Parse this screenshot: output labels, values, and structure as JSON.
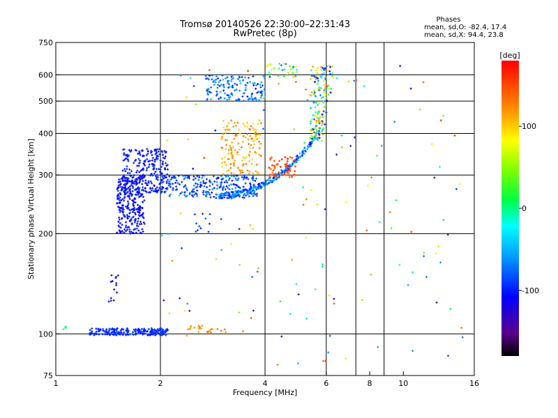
{
  "chart_data": {
    "type": "scatter",
    "title": "Tromsø 20140526 22:30:00–22:31:43",
    "subtitle": "RwPretec (8p)",
    "xlabel": "Frequency [MHz]",
    "ylabel": "Stationary phase Virtual Height [km]",
    "xscale": "log",
    "yscale": "log",
    "xlim": [
      1,
      16
    ],
    "ylim": [
      75,
      750
    ],
    "x_ticks": [
      1,
      2,
      4,
      6,
      8,
      10,
      16
    ],
    "x_tick_labels": [
      "1",
      "2",
      "4",
      "6",
      "8",
      "10",
      "16"
    ],
    "y_ticks": [
      75,
      100,
      200,
      300,
      400,
      500,
      600,
      750
    ],
    "y_tick_labels": [
      "75",
      "100",
      "200",
      "300",
      "400",
      "500",
      "600",
      "750"
    ],
    "grid": true,
    "grid_x": [
      2,
      4,
      6,
      7.3,
      8.8
    ],
    "grid_y": [
      100,
      200,
      300,
      400,
      500,
      600
    ],
    "stats": {
      "heading": "Phases",
      "line_o": "mean, sd,O:  -82.4, 17.4",
      "line_x": "mean, sd,X:  94.4, 23.8"
    },
    "colorbar": {
      "label": "[deg]",
      "range": [
        -180,
        180
      ],
      "ticks": [
        100,
        0,
        -100
      ],
      "tick_labels": [
        "100",
        "0",
        "-100"
      ],
      "colormap": "rainbow"
    },
    "clusters": [
      {
        "x_range": [
          1.25,
          2.1
        ],
        "y_range": [
          99,
          104
        ],
        "n": 220,
        "phase": [
          -105,
          -85
        ],
        "shape": "line"
      },
      {
        "x_range": [
          1.05,
          1.07
        ],
        "y_range": [
          103,
          106
        ],
        "n": 4,
        "phase": [
          -10,
          10
        ]
      },
      {
        "x_range": [
          1.42,
          1.52
        ],
        "y_range": [
          125,
          155
        ],
        "n": 14,
        "phase": [
          -120,
          -100
        ]
      },
      {
        "x_range": [
          1.5,
          1.8
        ],
        "y_range": [
          200,
          300
        ],
        "n": 280,
        "phase": [
          -120,
          -90
        ]
      },
      {
        "x_range": [
          1.55,
          2.1
        ],
        "y_range": [
          265,
          360
        ],
        "n": 250,
        "phase": [
          -115,
          -90
        ]
      },
      {
        "x_range": [
          2.0,
          3.8
        ],
        "y_range": [
          255,
          300
        ],
        "n": 260,
        "phase": [
          -110,
          -60
        ]
      },
      {
        "x_range": [
          2.9,
          5.6
        ],
        "y_range": [
          260,
          390
        ],
        "n": 240,
        "phase": [
          -110,
          -40
        ],
        "shape": "trace"
      },
      {
        "x_range": [
          4.1,
          4.9
        ],
        "y_range": [
          295,
          340
        ],
        "n": 60,
        "phase": [
          130,
          170
        ]
      },
      {
        "x_range": [
          3.0,
          3.9
        ],
        "y_range": [
          300,
          440
        ],
        "n": 150,
        "phase": [
          90,
          140
        ]
      },
      {
        "x_range": [
          2.7,
          4.0
        ],
        "y_range": [
          500,
          600
        ],
        "n": 140,
        "phase": [
          -110,
          -40
        ]
      },
      {
        "x_range": [
          4.0,
          5.0
        ],
        "y_range": [
          590,
          650
        ],
        "n": 30,
        "phase": [
          -80,
          100
        ]
      },
      {
        "x_range": [
          5.2,
          6.6
        ],
        "y_range": [
          380,
          640
        ],
        "n": 170,
        "phase": [
          -120,
          130
        ],
        "shape": "column"
      },
      {
        "x_range": [
          2.4,
          3.1
        ],
        "y_range": [
          101,
          106
        ],
        "n": 22,
        "phase": [
          110,
          140
        ]
      },
      {
        "x_range": [
          2.5,
          3.0
        ],
        "y_range": [
          200,
          230
        ],
        "n": 12,
        "phase": [
          -100,
          -80
        ]
      },
      {
        "x_range": [
          2.0,
          15.0
        ],
        "y_range": [
          78,
          650
        ],
        "n": 140,
        "phase": [
          -140,
          170
        ],
        "shape": "sparse"
      }
    ]
  }
}
